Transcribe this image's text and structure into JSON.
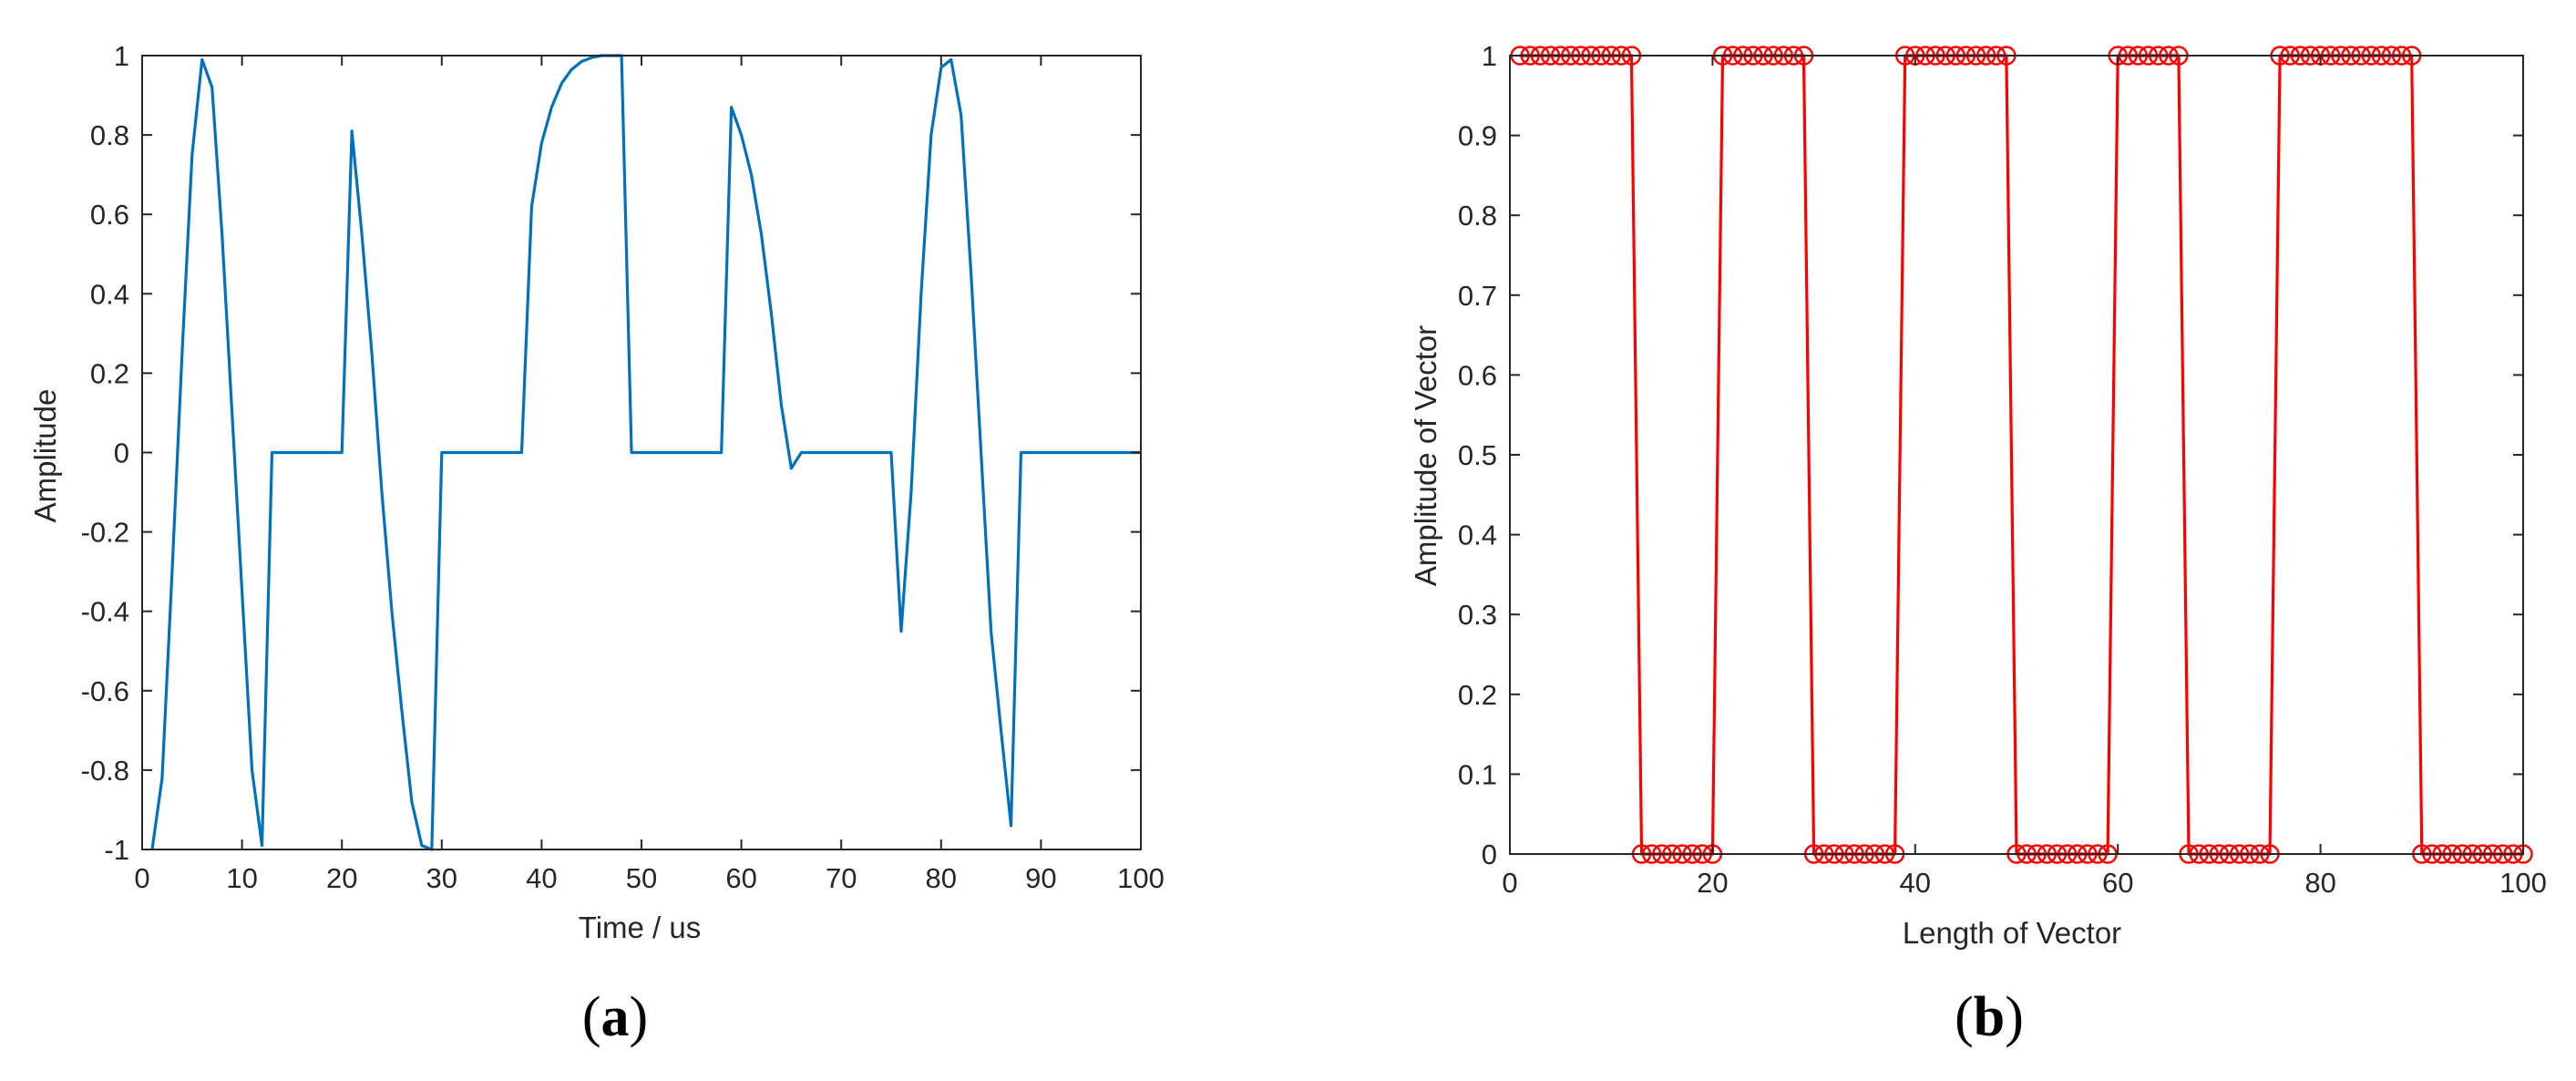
{
  "chart_data": [
    {
      "type": "line",
      "panel_label": "a",
      "xlabel": "Time / us",
      "ylabel": "Amplitude",
      "xlim": [
        0,
        100
      ],
      "ylim": [
        -1,
        1
      ],
      "xticks": [
        0,
        10,
        20,
        30,
        40,
        50,
        60,
        70,
        80,
        90,
        100
      ],
      "yticks": [
        -1,
        -0.8,
        -0.6,
        -0.4,
        -0.2,
        0,
        0.2,
        0.4,
        0.6,
        0.8,
        1
      ],
      "xtick_labels": [
        "0",
        "10",
        "20",
        "30",
        "40",
        "50",
        "60",
        "70",
        "80",
        "90",
        "100"
      ],
      "ytick_labels": [
        "-1",
        "-0.8",
        "-0.6",
        "-0.4",
        "-0.2",
        "0",
        "0.2",
        "0.4",
        "0.6",
        "0.8",
        "1"
      ],
      "grid": false,
      "color": "#0072BD",
      "series": [
        {
          "x": [
            1,
            2,
            3,
            4,
            5,
            6,
            7,
            8,
            9,
            10,
            11,
            12,
            13,
            14,
            15,
            16,
            17,
            18,
            19,
            20,
            21,
            22,
            23,
            24,
            25,
            26,
            27,
            28,
            29,
            30,
            31,
            32,
            33,
            34,
            35,
            36,
            37,
            38,
            39,
            40,
            41,
            42,
            43,
            44,
            45,
            46,
            47,
            48,
            49,
            50,
            51,
            52,
            53,
            54,
            55,
            56,
            57,
            58,
            59,
            60,
            61,
            62,
            63,
            64,
            65,
            66,
            67,
            68,
            69,
            70,
            71,
            72,
            73,
            74,
            75,
            76,
            77,
            78,
            79,
            80,
            81,
            82,
            83,
            84,
            85,
            86,
            87,
            88,
            89,
            90,
            91,
            92,
            93,
            94,
            95,
            96,
            97,
            98,
            99,
            100
          ],
          "y": [
            -1,
            -0.82,
            -0.3,
            0.25,
            0.75,
            0.99,
            0.92,
            0.55,
            0.1,
            -0.35,
            -0.8,
            -0.99,
            0,
            0,
            0,
            0,
            0,
            0,
            0,
            0,
            0.81,
            0.55,
            0.25,
            -0.1,
            -0.4,
            -0.65,
            -0.88,
            -0.99,
            -1,
            0,
            0,
            0,
            0,
            0,
            0,
            0,
            0,
            0,
            0.62,
            0.78,
            0.87,
            0.93,
            0.965,
            0.985,
            0.995,
            1,
            1,
            1,
            0,
            0,
            0,
            0,
            0,
            0,
            0,
            0,
            0,
            0,
            0.87,
            0.8,
            0.7,
            0.55,
            0.35,
            0.12,
            -0.04,
            0,
            0,
            0,
            0,
            0,
            0,
            0,
            0,
            0,
            0,
            -0.45,
            -0.1,
            0.4,
            0.8,
            0.97,
            0.99,
            0.85,
            0.45,
            0,
            -0.45,
            -0.7,
            -0.94,
            0,
            0,
            0,
            0,
            0,
            0,
            0,
            0,
            0,
            0,
            0,
            0,
            0
          ]
        }
      ]
    },
    {
      "type": "line",
      "panel_label": "b",
      "xlabel": "Length of Vector",
      "ylabel": "Amplitude of Vector",
      "xlim": [
        0,
        100
      ],
      "ylim": [
        0,
        1
      ],
      "xticks": [
        0,
        20,
        40,
        60,
        80,
        100
      ],
      "yticks": [
        0,
        0.1,
        0.2,
        0.3,
        0.4,
        0.5,
        0.6,
        0.7,
        0.8,
        0.9,
        1
      ],
      "xtick_labels": [
        "0",
        "20",
        "40",
        "60",
        "80",
        "100"
      ],
      "ytick_labels": [
        "0",
        "0.1",
        "0.2",
        "0.3",
        "0.4",
        "0.5",
        "0.6",
        "0.7",
        "0.8",
        "0.9",
        "1"
      ],
      "grid": false,
      "color": "#FF0000",
      "marker": "circle",
      "series": [
        {
          "x": [
            1,
            2,
            3,
            4,
            5,
            6,
            7,
            8,
            9,
            10,
            11,
            12,
            13,
            14,
            15,
            16,
            17,
            18,
            19,
            20,
            21,
            22,
            23,
            24,
            25,
            26,
            27,
            28,
            29,
            30,
            31,
            32,
            33,
            34,
            35,
            36,
            37,
            38,
            39,
            40,
            41,
            42,
            43,
            44,
            45,
            46,
            47,
            48,
            49,
            50,
            51,
            52,
            53,
            54,
            55,
            56,
            57,
            58,
            59,
            60,
            61,
            62,
            63,
            64,
            65,
            66,
            67,
            68,
            69,
            70,
            71,
            72,
            73,
            74,
            75,
            76,
            77,
            78,
            79,
            80,
            81,
            82,
            83,
            84,
            85,
            86,
            87,
            88,
            89,
            90,
            91,
            92,
            93,
            94,
            95,
            96,
            97,
            98,
            99,
            100
          ],
          "y": [
            1,
            1,
            1,
            1,
            1,
            1,
            1,
            1,
            1,
            1,
            1,
            1,
            0,
            0,
            0,
            0,
            0,
            0,
            0,
            0,
            1,
            1,
            1,
            1,
            1,
            1,
            1,
            1,
            1,
            0,
            0,
            0,
            0,
            0,
            0,
            0,
            0,
            0,
            1,
            1,
            1,
            1,
            1,
            1,
            1,
            1,
            1,
            1,
            1,
            0,
            0,
            0,
            0,
            0,
            0,
            0,
            0,
            0,
            0,
            1,
            1,
            1,
            1,
            1,
            1,
            1,
            0,
            0,
            0,
            0,
            0,
            0,
            0,
            0,
            0,
            1,
            1,
            1,
            1,
            1,
            1,
            1,
            1,
            1,
            1,
            1,
            1,
            1,
            1,
            0,
            0,
            0,
            0,
            0,
            0,
            0,
            0,
            0,
            0,
            0
          ]
        }
      ]
    }
  ]
}
